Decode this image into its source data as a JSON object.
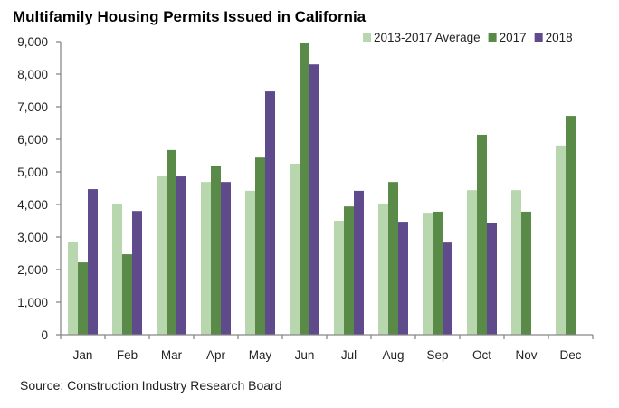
{
  "chart_data": {
    "type": "bar",
    "title": "Multifamily Housing Permits Issued in California",
    "source": "Source: Construction Industry Research Board",
    "xlabel": "",
    "ylabel": "",
    "ylim": [
      0,
      9000
    ],
    "yticks": [
      0,
      1000,
      2000,
      3000,
      4000,
      5000,
      6000,
      7000,
      8000,
      9000
    ],
    "ytick_labels": [
      "0",
      "1,000",
      "2,000",
      "3,000",
      "4,000",
      "5,000",
      "6,000",
      "7,000",
      "8,000",
      "9,000"
    ],
    "grid": false,
    "legend_position": "top-right",
    "categories": [
      "Jan",
      "Feb",
      "Mar",
      "Apr",
      "May",
      "Jun",
      "Jul",
      "Aug",
      "Sep",
      "Oct",
      "Nov",
      "Dec"
    ],
    "series": [
      {
        "name": "2013-2017 Average",
        "color": "#b8d7ae",
        "values": [
          2860,
          4000,
          4860,
          4690,
          4420,
          5250,
          3500,
          4030,
          3720,
          4440,
          4440,
          5810
        ]
      },
      {
        "name": "2017",
        "color": "#5a8a48",
        "values": [
          2220,
          2470,
          5670,
          5190,
          5440,
          8970,
          3940,
          4690,
          3780,
          6140,
          3780,
          6720
        ]
      },
      {
        "name": "2018",
        "color": "#5f4b8b",
        "values": [
          4470,
          3800,
          4860,
          4690,
          7470,
          8300,
          4420,
          3470,
          2830,
          3440,
          null,
          null
        ]
      }
    ]
  }
}
